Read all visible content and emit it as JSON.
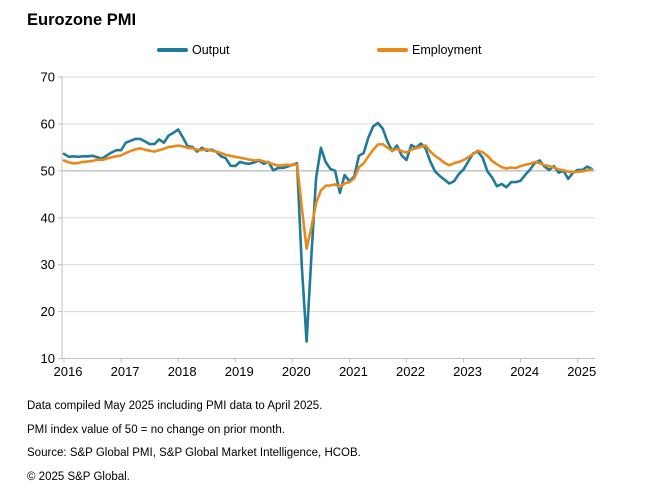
{
  "title": "Eurozone PMI",
  "legend": [
    {
      "label": "Output",
      "color": "#1f7a9b"
    },
    {
      "label": "Employment",
      "color": "#e8891c"
    }
  ],
  "footnotes": [
    "Data compiled May 2025 including PMI data to April 2025.",
    "PMI index value of 50 = no change on prior month.",
    "Source: S&P Global PMI, S&P Global Market Intelligence, HCOB.",
    "© 2025 S&P Global."
  ],
  "colors": {
    "output_line": "#1f7a9b",
    "employment_line": "#e8891c",
    "gridline": "#d9d9d9",
    "reference_line": "#a6a6a6",
    "axis_line": "#c0c0c0",
    "text": "#000000"
  },
  "chart_data": {
    "type": "line",
    "title": "Eurozone PMI",
    "x_start": "2016-01",
    "x_end": "2025-04",
    "points_per_year": 12,
    "x_tick_labels": [
      "2016",
      "2017",
      "2018",
      "2019",
      "2020",
      "2021",
      "2022",
      "2023",
      "2024",
      "2025"
    ],
    "ylim": [
      10,
      70
    ],
    "yticks": [
      10,
      20,
      30,
      40,
      50,
      60,
      70
    ],
    "reference_line": 50,
    "grid": true,
    "legend_position": "top",
    "series": [
      {
        "name": "Output",
        "color": "#1f7a9b",
        "values": [
          53.6,
          53.0,
          53.1,
          53.0,
          53.1,
          53.1,
          53.2,
          52.9,
          52.6,
          53.3,
          53.9,
          54.4,
          54.4,
          56.0,
          56.4,
          56.8,
          56.8,
          56.3,
          55.7,
          55.7,
          56.7,
          56.0,
          57.5,
          58.1,
          58.8,
          57.1,
          55.2,
          55.1,
          54.1,
          54.9,
          54.3,
          54.5,
          54.1,
          53.1,
          52.7,
          51.1,
          51.0,
          51.9,
          51.6,
          51.5,
          51.8,
          52.2,
          51.5,
          51.9,
          50.1,
          50.6,
          50.6,
          50.9,
          51.3,
          51.6,
          29.7,
          13.6,
          31.9,
          48.5,
          54.9,
          51.9,
          50.4,
          50.0,
          45.3,
          49.1,
          47.8,
          48.8,
          53.2,
          53.8,
          57.1,
          59.5,
          60.2,
          59.0,
          56.2,
          54.2,
          55.4,
          53.3,
          52.3,
          55.5,
          54.9,
          55.8,
          54.8,
          52.0,
          49.9,
          48.9,
          48.1,
          47.3,
          47.8,
          49.3,
          50.3,
          52.0,
          53.7,
          54.1,
          52.8,
          49.9,
          48.6,
          46.7,
          47.2,
          46.5,
          47.6,
          47.6,
          47.9,
          49.2,
          50.3,
          51.7,
          52.2,
          50.9,
          50.2,
          51.0,
          49.6,
          50.0,
          48.3,
          49.6,
          50.2,
          50.2,
          50.9,
          50.4
        ]
      },
      {
        "name": "Employment",
        "color": "#e8891c",
        "values": [
          52.2,
          51.8,
          51.6,
          51.7,
          51.9,
          52.0,
          52.1,
          52.4,
          52.3,
          52.6,
          52.9,
          53.1,
          53.3,
          53.8,
          54.2,
          54.6,
          54.8,
          54.5,
          54.3,
          54.1,
          54.4,
          54.7,
          55.1,
          55.2,
          55.4,
          55.2,
          54.9,
          54.8,
          54.5,
          54.4,
          54.6,
          54.3,
          54.1,
          53.8,
          53.4,
          53.2,
          53.0,
          52.8,
          52.6,
          52.4,
          52.2,
          52.3,
          52.0,
          51.8,
          51.4,
          51.1,
          51.2,
          51.3,
          51.2,
          51.4,
          42.2,
          33.4,
          38.0,
          43.1,
          45.8,
          46.8,
          46.9,
          47.1,
          46.6,
          47.3,
          47.6,
          48.4,
          50.8,
          51.6,
          53.1,
          54.5,
          55.6,
          55.7,
          54.9,
          54.3,
          54.7,
          54.2,
          53.9,
          54.5,
          54.8,
          55.1,
          55.4,
          54.1,
          53.2,
          52.5,
          51.7,
          51.2,
          51.6,
          51.9,
          52.3,
          52.9,
          53.6,
          54.3,
          54.0,
          53.2,
          52.1,
          51.4,
          50.8,
          50.5,
          50.7,
          50.6,
          51.0,
          51.3,
          51.5,
          51.9,
          51.6,
          51.2,
          51.0,
          50.7,
          50.3,
          50.1,
          49.8,
          49.7,
          49.8,
          49.9,
          50.1,
          50.3
        ]
      }
    ]
  }
}
